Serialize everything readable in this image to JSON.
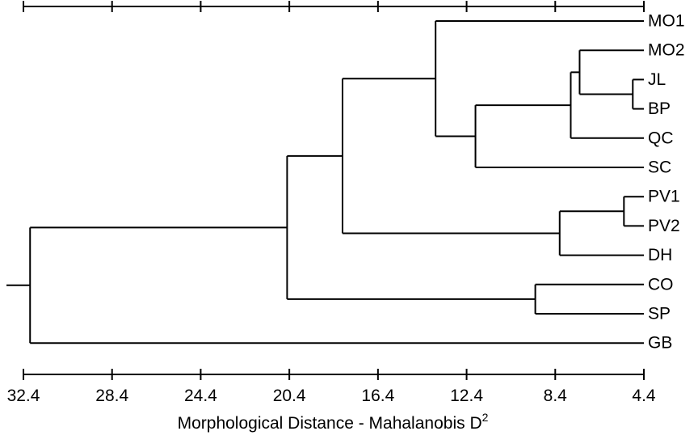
{
  "chart_data": {
    "type": "dendrogram",
    "xlabel": "Morphological Distance - Mahalanobis D",
    "xlabel_superscript": "2",
    "x_ticks": [
      "32.4",
      "28.4",
      "24.4",
      "20.4",
      "16.4",
      "12.4",
      "8.4",
      "4.4"
    ],
    "xlim": [
      32.4,
      4.4
    ],
    "x_reversed": true,
    "leaves": [
      "MO1",
      "MO2",
      "JL",
      "BP",
      "QC",
      "SC",
      "PV1",
      "PV2",
      "DH",
      "CO",
      "SP",
      "GB"
    ],
    "merges": [
      {
        "id": "m_jl_bp",
        "children": [
          "JL",
          "BP"
        ],
        "height": 4.9
      },
      {
        "id": "m_pv1_pv2",
        "children": [
          "PV1",
          "PV2"
        ],
        "height": 5.3
      },
      {
        "id": "m_mo2_jlbp",
        "children": [
          "MO2",
          "m_jl_bp"
        ],
        "height": 7.3
      },
      {
        "id": "m_qc",
        "children": [
          "m_mo2_jlbp",
          "QC"
        ],
        "height": 7.7
      },
      {
        "id": "m_pv_dh",
        "children": [
          "m_pv1_pv2",
          "DH"
        ],
        "height": 8.2
      },
      {
        "id": "m_co_sp",
        "children": [
          "CO",
          "SP"
        ],
        "height": 9.3
      },
      {
        "id": "m_sc",
        "children": [
          "m_qc",
          "SC"
        ],
        "height": 12.0
      },
      {
        "id": "m_mo1",
        "children": [
          "MO1",
          "m_sc"
        ],
        "height": 13.8
      },
      {
        "id": "m_big",
        "children": [
          "m_mo1",
          "m_pv_dh"
        ],
        "height": 18.0
      },
      {
        "id": "m_cosp",
        "children": [
          "m_big",
          "m_co_sp"
        ],
        "height": 20.5
      },
      {
        "id": "m_root",
        "children": [
          "m_cosp",
          "GB"
        ],
        "height": 32.1
      }
    ]
  }
}
